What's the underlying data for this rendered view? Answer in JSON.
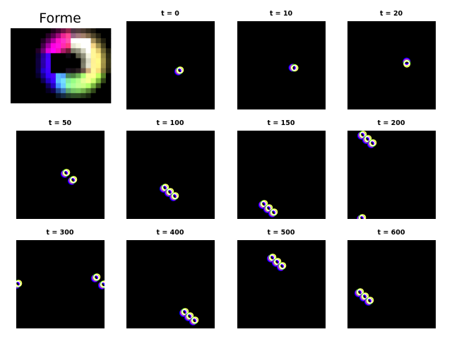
{
  "figure": {
    "main_title": "Forme",
    "background_color": "#000000",
    "panel_titles": [
      "t = 0",
      "t = 10",
      "t = 20",
      "t = 50",
      "t = 100",
      "t = 150",
      "t = 200",
      "t = 300",
      "t = 400",
      "t = 500",
      "t = 600"
    ]
  }
}
